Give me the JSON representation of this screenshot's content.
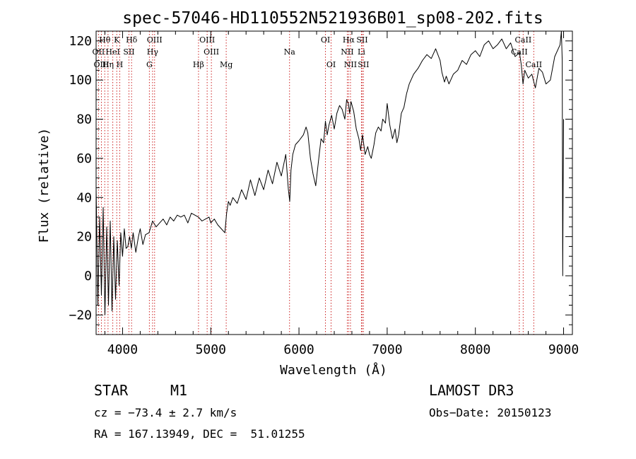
{
  "chart_data": {
    "type": "line",
    "title": "spec-57046-HD110552N521936B01_sp08-202.fits",
    "xlabel": "Wavelength (Å)",
    "ylabel": "Flux (relative)",
    "xlim": [
      3700,
      9100
    ],
    "ylim": [
      -30,
      125
    ],
    "xticks": [
      4000,
      5000,
      6000,
      7000,
      8000,
      9000
    ],
    "yticks": [
      -20,
      0,
      20,
      40,
      60,
      80,
      100,
      120
    ],
    "tick_labels_x": [
      "4000",
      "5000",
      "6000",
      "7000",
      "8000",
      "9000"
    ],
    "tick_labels_y": [
      "−20",
      "0",
      "20",
      "40",
      "60",
      "80",
      "100",
      "120"
    ],
    "series": [
      {
        "name": "spectrum",
        "x": [
          3700,
          3720,
          3740,
          3760,
          3780,
          3800,
          3820,
          3840,
          3860,
          3880,
          3900,
          3920,
          3940,
          3960,
          3980,
          4000,
          4020,
          4040,
          4060,
          4080,
          4100,
          4120,
          4150,
          4180,
          4200,
          4230,
          4260,
          4300,
          4340,
          4380,
          4420,
          4460,
          4500,
          4540,
          4580,
          4620,
          4660,
          4700,
          4740,
          4780,
          4820,
          4860,
          4900,
          4940,
          4980,
          5000,
          5040,
          5080,
          5120,
          5160,
          5180,
          5200,
          5220,
          5250,
          5300,
          5350,
          5400,
          5450,
          5500,
          5550,
          5600,
          5650,
          5700,
          5750,
          5800,
          5850,
          5880,
          5895,
          5910,
          5930,
          5960,
          6000,
          6050,
          6080,
          6100,
          6130,
          6160,
          6190,
          6220,
          6250,
          6280,
          6300,
          6320,
          6340,
          6370,
          6400,
          6430,
          6460,
          6490,
          6520,
          6540,
          6560,
          6575,
          6590,
          6620,
          6650,
          6680,
          6700,
          6720,
          6750,
          6780,
          6800,
          6820,
          6850,
          6870,
          6900,
          6930,
          6950,
          6980,
          7000,
          7030,
          7060,
          7090,
          7110,
          7130,
          7160,
          7190,
          7220,
          7250,
          7300,
          7350,
          7400,
          7450,
          7500,
          7550,
          7600,
          7620,
          7650,
          7670,
          7700,
          7750,
          7800,
          7850,
          7900,
          7950,
          8000,
          8050,
          8100,
          8150,
          8200,
          8250,
          8300,
          8350,
          8400,
          8450,
          8500,
          8520,
          8540,
          8560,
          8600,
          8640,
          8680,
          8720,
          8760,
          8800,
          8850,
          8900,
          8940,
          8960,
          8975,
          8985,
          8990,
          8995,
          9000
        ],
        "values": [
          45,
          -15,
          30,
          -10,
          35,
          -20,
          25,
          -15,
          28,
          -18,
          20,
          -12,
          18,
          -5,
          22,
          10,
          24,
          14,
          15,
          20,
          14,
          22,
          12,
          20,
          24,
          16,
          21,
          22,
          28,
          25,
          27,
          29,
          26,
          30,
          28,
          31,
          30,
          31,
          27,
          32,
          31,
          30,
          28,
          29,
          30,
          27,
          29,
          26,
          24,
          22,
          32,
          38,
          36,
          40,
          37,
          44,
          39,
          49,
          41,
          50,
          44,
          54,
          47,
          58,
          51,
          62,
          44,
          38,
          54,
          62,
          67,
          69,
          72,
          76,
          73,
          60,
          52,
          46,
          58,
          70,
          68,
          79,
          72,
          77,
          82,
          75,
          83,
          87,
          85,
          80,
          90,
          88,
          83,
          89,
          84,
          75,
          70,
          64,
          72,
          62,
          66,
          62,
          60,
          67,
          73,
          76,
          74,
          80,
          78,
          88,
          77,
          70,
          75,
          68,
          72,
          83,
          86,
          93,
          98,
          103,
          106,
          110,
          113,
          111,
          116,
          110,
          104,
          99,
          102,
          98,
          103,
          105,
          110,
          108,
          113,
          115,
          112,
          118,
          120,
          116,
          118,
          121,
          116,
          119,
          112,
          114,
          108,
          98,
          105,
          101,
          103,
          96,
          106,
          104,
          98,
          100,
          112,
          116,
          118,
          125,
          110,
          0,
          45,
          80
        ]
      }
    ],
    "spectral_lines": [
      {
        "name": "Hθ",
        "wl": 3798,
        "row": 0
      },
      {
        "name": "K",
        "wl": 3934,
        "row": 0
      },
      {
        "name": "Hδ",
        "wl": 4102,
        "row": 0
      },
      {
        "name": "OIII",
        "wl": 4363,
        "row": 0
      },
      {
        "name": "OIII",
        "wl": 4959,
        "row": 0
      },
      {
        "name": "OI",
        "wl": 6300,
        "row": 0
      },
      {
        "name": "Hα",
        "wl": 6563,
        "row": 0
      },
      {
        "name": "SII",
        "wl": 6716,
        "row": 0
      },
      {
        "name": "CaII",
        "wl": 8542,
        "row": 0
      },
      {
        "name": "OII",
        "wl": 3727,
        "row": 1
      },
      {
        "name": "HeI",
        "wl": 3889,
        "row": 1
      },
      {
        "name": "SII",
        "wl": 4072,
        "row": 1
      },
      {
        "name": "Hγ",
        "wl": 4340,
        "row": 1
      },
      {
        "name": "OIII",
        "wl": 5007,
        "row": 1
      },
      {
        "name": "Na",
        "wl": 5893,
        "row": 1
      },
      {
        "name": "NII",
        "wl": 6548,
        "row": 1
      },
      {
        "name": "Li",
        "wl": 6708,
        "row": 1
      },
      {
        "name": "CaII",
        "wl": 8498,
        "row": 1
      },
      {
        "name": "OIII",
        "wl": 3760,
        "row": 2
      },
      {
        "name": "Hη",
        "wl": 3835,
        "row": 2
      },
      {
        "name": "H",
        "wl": 3968,
        "row": 2
      },
      {
        "name": "G",
        "wl": 4304,
        "row": 2
      },
      {
        "name": "Hβ",
        "wl": 4861,
        "row": 2
      },
      {
        "name": "Mg",
        "wl": 5175,
        "row": 2
      },
      {
        "name": "OI",
        "wl": 6364,
        "row": 2
      },
      {
        "name": "NII",
        "wl": 6584,
        "row": 2
      },
      {
        "name": "SII",
        "wl": 6731,
        "row": 2
      },
      {
        "name": "CaII",
        "wl": 8662,
        "row": 2
      }
    ]
  },
  "info": {
    "object_class": "STAR",
    "subclass": "M1",
    "survey": "LAMOST DR3",
    "redshift": "cz = −73.4 ± 2.7 km/s",
    "obs_date": "Obs−Date: 20150123",
    "coords": "RA = 167.13949, DEC =  51.01255"
  },
  "colors": {
    "line": "#000000",
    "marker": "#cc2222",
    "background": "#ffffff"
  }
}
